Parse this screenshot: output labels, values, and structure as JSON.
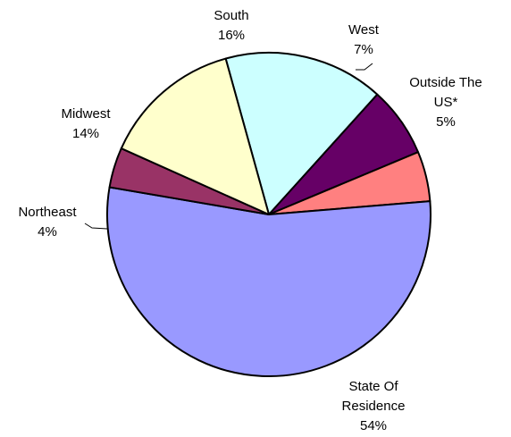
{
  "chart_data": {
    "type": "pie",
    "title": "",
    "slices": [
      {
        "label_lines": [
          "South"
        ],
        "percent_label": "16%",
        "value": 16,
        "color": "#CCFFFF"
      },
      {
        "label_lines": [
          "West"
        ],
        "percent_label": "7%",
        "value": 7,
        "color": "#660066"
      },
      {
        "label_lines": [
          "Outside The",
          "US*"
        ],
        "percent_label": "5%",
        "value": 5,
        "color": "#FF8080"
      },
      {
        "label_lines": [
          "State Of",
          "Residence"
        ],
        "percent_label": "54%",
        "value": 54,
        "color": "#9999FF"
      },
      {
        "label_lines": [
          "Northeast"
        ],
        "percent_label": "4%",
        "value": 4,
        "color": "#993366"
      },
      {
        "label_lines": [
          "Midwest"
        ],
        "percent_label": "14%",
        "value": 14,
        "color": "#FFFFCC"
      }
    ]
  }
}
